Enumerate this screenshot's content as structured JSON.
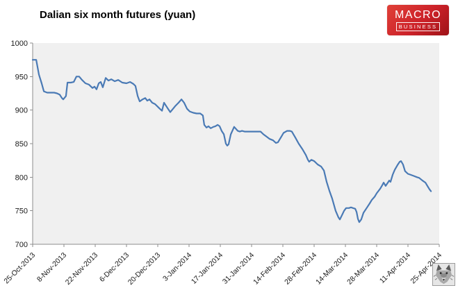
{
  "title": "Dalian six month futures (yuan)",
  "logo": {
    "line1": "MACRO",
    "line2": "BUSINESS",
    "bg": "#cc2229"
  },
  "chart_data": {
    "type": "line",
    "title": "Dalian six month futures (yuan)",
    "xlabel": "",
    "ylabel": "",
    "ylim": [
      700,
      1000
    ],
    "y_ticks": [
      700,
      750,
      800,
      850,
      900,
      950,
      1000
    ],
    "x_range_days": [
      0,
      182
    ],
    "x_tick_days": [
      0,
      14,
      28,
      42,
      56,
      70,
      84,
      98,
      112,
      126,
      140,
      154,
      168,
      182
    ],
    "x_tick_labels": [
      "25-Oct-2013",
      "8-Nov-2013",
      "22-Nov-2013",
      "6-Dec-2013",
      "20-Dec-2013",
      "3-Jan-2014",
      "17-Jan-2014",
      "31-Jan-2014",
      "14-Feb-2014",
      "28-Feb-2014",
      "14-Mar-2014",
      "28-Mar-2014",
      "11-Apr-2014",
      "25-Apr-2014"
    ],
    "grid": false,
    "legend": false,
    "plot_bg": "#f0f0f0",
    "line_color": "#4a7ab5",
    "axis_color": "#8c8c8c",
    "tick_label_color": "#1a1a1a",
    "points": [
      [
        0,
        975
      ],
      [
        1.6,
        975
      ],
      [
        2.8,
        953
      ],
      [
        4,
        940
      ],
      [
        5,
        928
      ],
      [
        6.5,
        926
      ],
      [
        8.1,
        926
      ],
      [
        9.6,
        926
      ],
      [
        10.9,
        925
      ],
      [
        12.1,
        923
      ],
      [
        13.1,
        918
      ],
      [
        13.7,
        916
      ],
      [
        14.9,
        921
      ],
      [
        15.6,
        941
      ],
      [
        17.1,
        941
      ],
      [
        18.4,
        942
      ],
      [
        19.6,
        950
      ],
      [
        20.8,
        950
      ],
      [
        22.1,
        945
      ],
      [
        23.6,
        940
      ],
      [
        25.2,
        938
      ],
      [
        26.8,
        933
      ],
      [
        27.7,
        935
      ],
      [
        28.6,
        931
      ],
      [
        29.6,
        940
      ],
      [
        30.5,
        942
      ],
      [
        31.4,
        934
      ],
      [
        32.7,
        948
      ],
      [
        33.9,
        944
      ],
      [
        35.2,
        946
      ],
      [
        36.7,
        943
      ],
      [
        38.3,
        945
      ],
      [
        40.1,
        941
      ],
      [
        42,
        940
      ],
      [
        43.6,
        942
      ],
      [
        45.1,
        939
      ],
      [
        46,
        936
      ],
      [
        47,
        921
      ],
      [
        47.9,
        913
      ],
      [
        49.2,
        916
      ],
      [
        50.4,
        918
      ],
      [
        51.3,
        914
      ],
      [
        52.3,
        916
      ],
      [
        53.5,
        911
      ],
      [
        54.8,
        909
      ],
      [
        56,
        905
      ],
      [
        56.9,
        902
      ],
      [
        57.9,
        899
      ],
      [
        58.8,
        911
      ],
      [
        60.4,
        903
      ],
      [
        61.6,
        897
      ],
      [
        63.8,
        906
      ],
      [
        65.3,
        911
      ],
      [
        66.6,
        916
      ],
      [
        67.8,
        911
      ],
      [
        69.1,
        902
      ],
      [
        70.3,
        898
      ],
      [
        71.9,
        896
      ],
      [
        73.4,
        895
      ],
      [
        75,
        895
      ],
      [
        76.2,
        892
      ],
      [
        76.8,
        878
      ],
      [
        77.8,
        874
      ],
      [
        78.7,
        876
      ],
      [
        79.7,
        873
      ],
      [
        80.9,
        875
      ],
      [
        81.8,
        876
      ],
      [
        82.8,
        878
      ],
      [
        83.7,
        876
      ],
      [
        84.6,
        869
      ],
      [
        85.6,
        864
      ],
      [
        86.5,
        850
      ],
      [
        87.1,
        847
      ],
      [
        87.7,
        849
      ],
      [
        88.7,
        864
      ],
      [
        90.2,
        875
      ],
      [
        91.8,
        869
      ],
      [
        92.7,
        868
      ],
      [
        93.7,
        869
      ],
      [
        94.9,
        868
      ],
      [
        96.7,
        868
      ],
      [
        98.6,
        868
      ],
      [
        100.5,
        868
      ],
      [
        102,
        868
      ],
      [
        103.3,
        864
      ],
      [
        104.5,
        861
      ],
      [
        106.1,
        857
      ],
      [
        107.6,
        855
      ],
      [
        108.9,
        851
      ],
      [
        109.8,
        852
      ],
      [
        111.4,
        861
      ],
      [
        112.3,
        866
      ],
      [
        113.9,
        869
      ],
      [
        115.1,
        869
      ],
      [
        116,
        868
      ],
      [
        117.6,
        859
      ],
      [
        119.1,
        850
      ],
      [
        120.7,
        842
      ],
      [
        122.3,
        833
      ],
      [
        123.2,
        826
      ],
      [
        123.8,
        823
      ],
      [
        124.8,
        826
      ],
      [
        126,
        824
      ],
      [
        127.6,
        819
      ],
      [
        129.1,
        816
      ],
      [
        130.4,
        810
      ],
      [
        131.6,
        793
      ],
      [
        132.8,
        780
      ],
      [
        134.1,
        768
      ],
      [
        135.6,
        750
      ],
      [
        136.9,
        740
      ],
      [
        137.5,
        737
      ],
      [
        138.4,
        743
      ],
      [
        139.4,
        750
      ],
      [
        140.3,
        754
      ],
      [
        141.6,
        754
      ],
      [
        142.5,
        755
      ],
      [
        143.4,
        754
      ],
      [
        144.4,
        753
      ],
      [
        145,
        748
      ],
      [
        145.6,
        738
      ],
      [
        146.2,
        733
      ],
      [
        147.1,
        737
      ],
      [
        148.1,
        747
      ],
      [
        149.7,
        755
      ],
      [
        150.9,
        761
      ],
      [
        151.8,
        766
      ],
      [
        153.1,
        771
      ],
      [
        154,
        776
      ],
      [
        155.6,
        783
      ],
      [
        156.5,
        788
      ],
      [
        157.1,
        792
      ],
      [
        158,
        787
      ],
      [
        159,
        792
      ],
      [
        159.6,
        795
      ],
      [
        160.2,
        793
      ],
      [
        161.2,
        804
      ],
      [
        162.1,
        811
      ],
      [
        163.3,
        818
      ],
      [
        164.3,
        823
      ],
      [
        164.9,
        824
      ],
      [
        165.8,
        819
      ],
      [
        166.7,
        809
      ],
      [
        168,
        805
      ],
      [
        168.9,
        804
      ],
      [
        170.5,
        802
      ],
      [
        172,
        800
      ],
      [
        173,
        799
      ],
      [
        174.5,
        795
      ],
      [
        175.8,
        792
      ],
      [
        176.7,
        787
      ],
      [
        177.6,
        782
      ],
      [
        178.3,
        779
      ]
    ]
  }
}
